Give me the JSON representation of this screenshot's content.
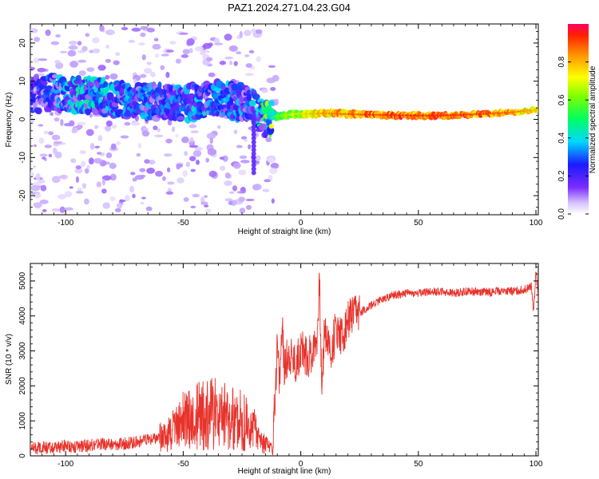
{
  "title": "PAZ1.2024.271.04.23.G04",
  "chart_data": [
    {
      "type": "heatmap",
      "xlabel": "Height of straight line (km)",
      "ylabel": "Frequency (Hz)",
      "xlim": [
        -115,
        101
      ],
      "ylim": [
        -25,
        25
      ],
      "xticks": [
        -100,
        -50,
        0,
        50,
        100
      ],
      "yticks": [
        -20,
        -10,
        0,
        10,
        20
      ],
      "grid": false,
      "colorbar": {
        "label": "Normalized spectral amplitude",
        "range": [
          0,
          1
        ],
        "ticks": [
          0.0,
          0.2,
          0.4,
          0.6,
          0.8
        ],
        "colormap": "rainbow (purple→blue→cyan→green→yellow→orange→red)"
      },
      "ridge": {
        "x": [
          -112,
          -105,
          -100,
          -90,
          -80,
          -70,
          -60,
          -50,
          -40,
          -30,
          -22,
          -18,
          -15,
          -10,
          -5,
          0,
          5,
          10,
          20,
          30,
          40,
          50,
          60,
          70,
          80,
          90,
          100
        ],
        "frequency": [
          6.5,
          7.0,
          6.8,
          6.2,
          5.5,
          5.0,
          4.5,
          4.0,
          5.5,
          5.0,
          4.0,
          2.0,
          0.0,
          0.8,
          1.2,
          1.5,
          1.5,
          1.6,
          1.4,
          1.2,
          1.1,
          1.0,
          1.0,
          1.2,
          1.5,
          1.8,
          2.5
        ],
        "amplitude": [
          0.15,
          0.2,
          0.22,
          0.25,
          0.22,
          0.2,
          0.18,
          0.2,
          0.22,
          0.2,
          0.2,
          0.25,
          0.3,
          0.5,
          0.6,
          0.65,
          0.7,
          0.75,
          0.8,
          0.85,
          0.85,
          0.85,
          0.85,
          0.85,
          0.82,
          0.8,
          0.7
        ]
      }
    },
    {
      "type": "line",
      "xlabel": "Height of straight line (km)",
      "ylabel": "SNR (10 * v/v)",
      "xlim": [
        -115,
        101
      ],
      "ylim": [
        0,
        5500
      ],
      "xticks": [
        -100,
        -50,
        0,
        50,
        100
      ],
      "yticks": [
        0,
        1000,
        2000,
        3000,
        4000,
        5000
      ],
      "grid": false,
      "series": [
        {
          "color": "#e8332c",
          "x": [
            -115,
            -110,
            -105,
            -100,
            -95,
            -90,
            -85,
            -80,
            -75,
            -70,
            -65,
            -60,
            -55,
            -50,
            -45,
            -40,
            -35,
            -30,
            -25,
            -20,
            -15,
            -12,
            -10,
            -9,
            -8,
            -7,
            -5,
            -2,
            0,
            3,
            5,
            7,
            8,
            9,
            10,
            13,
            15,
            18,
            20,
            25,
            30,
            35,
            40,
            45,
            50,
            55,
            60,
            65,
            70,
            75,
            80,
            85,
            90,
            95,
            98,
            99,
            100,
            101
          ],
          "y": [
            200,
            250,
            200,
            300,
            250,
            300,
            350,
            300,
            350,
            400,
            450,
            500,
            600,
            900,
            1000,
            1100,
            1100,
            1050,
            900,
            700,
            300,
            150,
            3200,
            2100,
            3700,
            2500,
            3000,
            2600,
            3100,
            2800,
            3000,
            3500,
            4900,
            1700,
            3700,
            2900,
            3700,
            3400,
            3900,
            4100,
            4300,
            4500,
            4600,
            4650,
            4650,
            4700,
            4700,
            4650,
            4700,
            4700,
            4680,
            4720,
            4700,
            4750,
            4850,
            4100,
            5300,
            4500
          ]
        }
      ]
    }
  ]
}
